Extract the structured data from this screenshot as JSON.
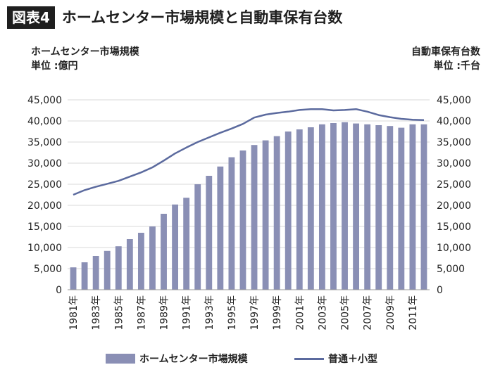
{
  "figure": {
    "badge": "図表4",
    "title": "ホームセンター市場規模と自動車保有台数",
    "left_caption": "ホームセンター市場規模",
    "left_unit": "単位 :億円",
    "right_caption": "自動車保有台数",
    "right_unit": "単位 :千台"
  },
  "chart_data": {
    "type": "bar",
    "x": [
      "1981年",
      "1982年",
      "1983年",
      "1984年",
      "1985年",
      "1986年",
      "1987年",
      "1988年",
      "1989年",
      "1990年",
      "1991年",
      "1992年",
      "1993年",
      "1994年",
      "1995年",
      "1996年",
      "1997年",
      "1998年",
      "1999年",
      "2000年",
      "2001年",
      "2002年",
      "2003年",
      "2004年",
      "2005年",
      "2006年",
      "2007年",
      "2008年",
      "2009年",
      "2010年",
      "2011年",
      "2012年"
    ],
    "x_tick_labels": [
      "1981年",
      "1983年",
      "1985年",
      "1987年",
      "1989年",
      "1991年",
      "1993年",
      "1995年",
      "1997年",
      "1999年",
      "2001年",
      "2003年",
      "2005年",
      "2007年",
      "2009年",
      "2011年"
    ],
    "series": [
      {
        "name": "ホームセンター市場規模",
        "type": "bar",
        "axis": "left",
        "color": "#8a8fb5",
        "values": [
          5300,
          6500,
          8000,
          9200,
          10300,
          12000,
          13500,
          15000,
          18000,
          20200,
          21800,
          25000,
          27000,
          29200,
          31400,
          33000,
          34300,
          35400,
          36400,
          37500,
          38000,
          38500,
          39200,
          39500,
          39700,
          39400,
          39200,
          39000,
          38800,
          38400,
          39200,
          39200
        ]
      },
      {
        "name": "普通＋小型",
        "type": "line",
        "axis": "right",
        "color": "#5b6a9e",
        "values": [
          22500,
          23600,
          24400,
          25100,
          25800,
          26800,
          27800,
          29000,
          30600,
          32300,
          33700,
          35000,
          36100,
          37200,
          38200,
          39300,
          40800,
          41500,
          41900,
          42200,
          42600,
          42800,
          42800,
          42500,
          42600,
          42800,
          42200,
          41400,
          40900,
          40500,
          40300,
          40200
        ]
      }
    ],
    "y_left": {
      "min": 0,
      "max": 45000,
      "step": 5000,
      "tick_labels": [
        "0",
        "5,000",
        "10,000",
        "15,000",
        "20,000",
        "25,000",
        "30,000",
        "35,000",
        "40,000",
        "45,000"
      ]
    },
    "y_right": {
      "min": 0,
      "max": 45000,
      "step": 5000,
      "tick_labels": [
        "0",
        "5,000",
        "10,000",
        "15,000",
        "20,000",
        "25,000",
        "30,000",
        "35,000",
        "40,000",
        "45,000"
      ]
    },
    "grid": true,
    "legend_position": "bottom"
  }
}
